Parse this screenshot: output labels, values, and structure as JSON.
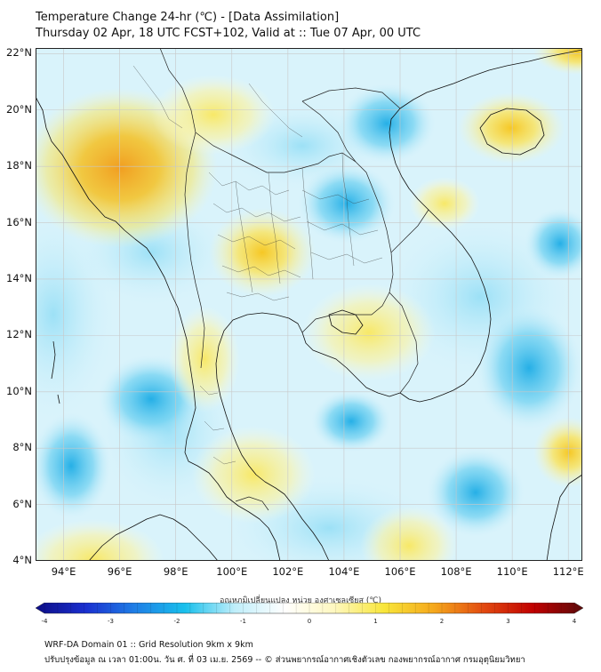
{
  "title": {
    "line1": "Temperature Change 24-hr (℃) - [Data Assimilation]",
    "line2": "Thursday 02 Apr, 18 UTC FCST+102, Valid at :: Tue 07 Apr, 00 UTC"
  },
  "axes": {
    "lat_labels": [
      "22°N",
      "20°N",
      "18°N",
      "16°N",
      "14°N",
      "12°N",
      "10°N",
      "8°N",
      "6°N",
      "4°N"
    ],
    "lat_values": [
      22,
      20,
      18,
      16,
      14,
      12,
      10,
      8,
      6,
      4
    ],
    "lon_labels": [
      "94°E",
      "96°E",
      "98°E",
      "100°E",
      "102°E",
      "104°E",
      "106°E",
      "108°E",
      "110°E",
      "112°E"
    ],
    "lon_values": [
      94,
      96,
      98,
      100,
      102,
      104,
      106,
      108,
      110,
      112
    ],
    "lon_range": [
      93,
      112.5
    ],
    "lat_range": [
      4,
      22.2
    ]
  },
  "colorbar": {
    "title": "อุณหภูมิเปลี่ยนแปลง หน่วย องศาเซลเซียส (℃)",
    "tick_labels": [
      "-4",
      "-3",
      "-2",
      "-1",
      "0",
      "1",
      "2",
      "3",
      "4"
    ],
    "tick_values": [
      -4,
      -3,
      -2,
      -1,
      0,
      1,
      2,
      3,
      4
    ],
    "colors": [
      "#0d0d85",
      "#1a2fcf",
      "#1f7fe6",
      "#19c0ec",
      "#bfeefa",
      "#ffffff",
      "#fff8c0",
      "#f8e63a",
      "#f5a81c",
      "#e24a10",
      "#c00000",
      "#5a0a0a"
    ]
  },
  "colors": {
    "land_border": "#111111",
    "grid": "#c8c8c8",
    "warm": "#f6dd33",
    "cold": "#1ab3e8"
  },
  "footer": {
    "line1": "WRF-DA Domain 01 :: Grid Resolution 9km x 9km",
    "line2": "ปรับปรุงข้อมูล ณ เวลา 01:00น. วัน ศ. ที่ 03 เม.ย. 2569 -- © ส่วนพยากรณ์อากาศเชิงตัวเลข กองพยากรณ์อากาศ กรมอุตุนิยมวิทยา"
  }
}
